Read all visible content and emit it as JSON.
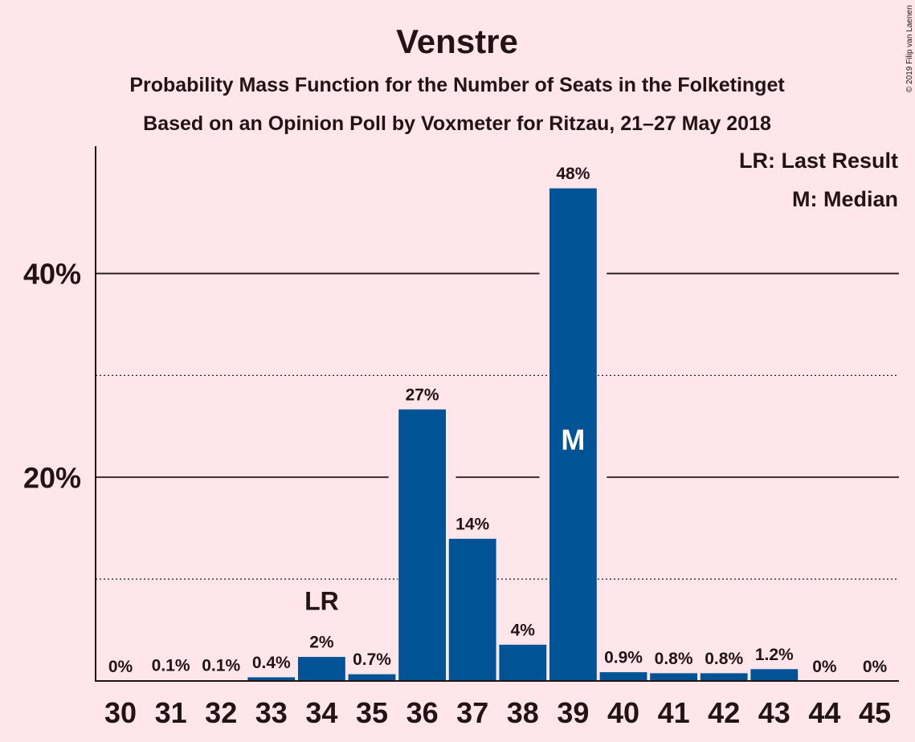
{
  "chart_data": {
    "type": "bar",
    "title": "Venstre",
    "subtitle_lines": [
      "Probability Mass Function for the Number of Seats in the Folketinget",
      "Based on an Opinion Poll by Voxmeter for Ritzau, 21–27 May 2018"
    ],
    "categories": [
      "30",
      "31",
      "32",
      "33",
      "34",
      "35",
      "36",
      "37",
      "38",
      "39",
      "40",
      "41",
      "42",
      "43",
      "44",
      "45"
    ],
    "values": [
      0,
      0.1,
      0.1,
      0.4,
      2.4,
      0.7,
      26.7,
      14.0,
      3.6,
      48.4,
      0.9,
      0.8,
      0.8,
      1.2,
      0,
      0
    ],
    "value_labels": [
      "0%",
      "0.1%",
      "0.1%",
      "0.4%",
      "2%",
      "0.7%",
      "27%",
      "14%",
      "4%",
      "48%",
      "0.9%",
      "0.8%",
      "0.8%",
      "1.2%",
      "0%",
      "0%"
    ],
    "ylim": [
      0,
      52.5
    ],
    "major_ticks": [
      20,
      40
    ],
    "major_tick_labels": [
      "20%",
      "40%"
    ],
    "minor_gridlines": [
      10,
      30
    ],
    "last_result_category": "34",
    "last_result_label": "LR",
    "median_category": "39",
    "median_label": "M",
    "legend": [
      "LR: Last Result",
      "M: Median"
    ],
    "legend_position": "top-right",
    "bar_color": "#005496",
    "background_color": "#ffe6eb",
    "copyright": "© 2019 Filip van Laenen"
  }
}
